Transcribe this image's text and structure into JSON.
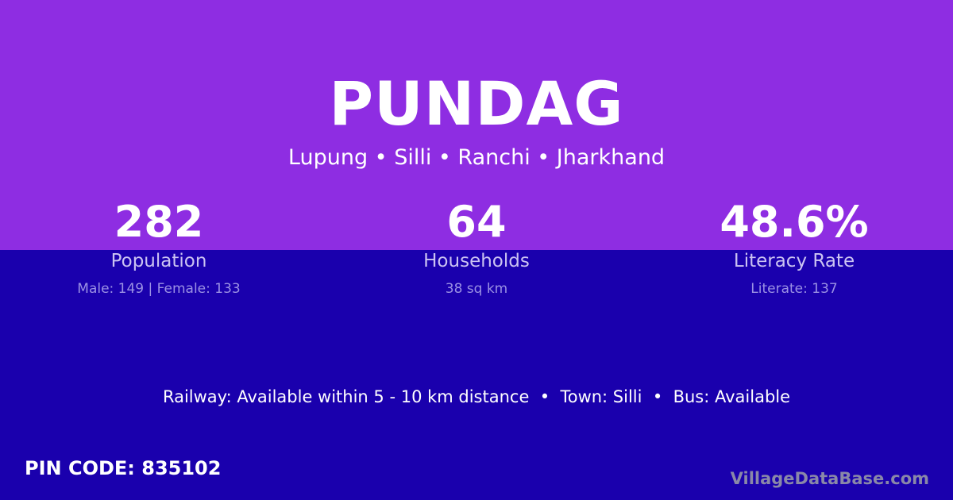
{
  "colors": {
    "top_background": "#8e2de2",
    "bottom_background": "#1a00ad",
    "label": "#cbc3f2",
    "detail": "#9b91e4",
    "brand": "#8a88a8"
  },
  "title": "PUNDAG",
  "subtitle": "Lupung • Silli • Ranchi • Jharkhand",
  "stats": [
    {
      "value": "282",
      "label": "Population",
      "detail": "Male: 149 | Female: 133"
    },
    {
      "value": "64",
      "label": "Households",
      "detail": "38 sq km"
    },
    {
      "value": "48.6%",
      "label": "Literacy Rate",
      "detail": "Literate: 137"
    }
  ],
  "info": "Railway: Available within 5 - 10 km distance  •  Town: Silli  •  Bus: Available",
  "pin": "PIN CODE: 835102",
  "brand": "VillageDataBase.com"
}
